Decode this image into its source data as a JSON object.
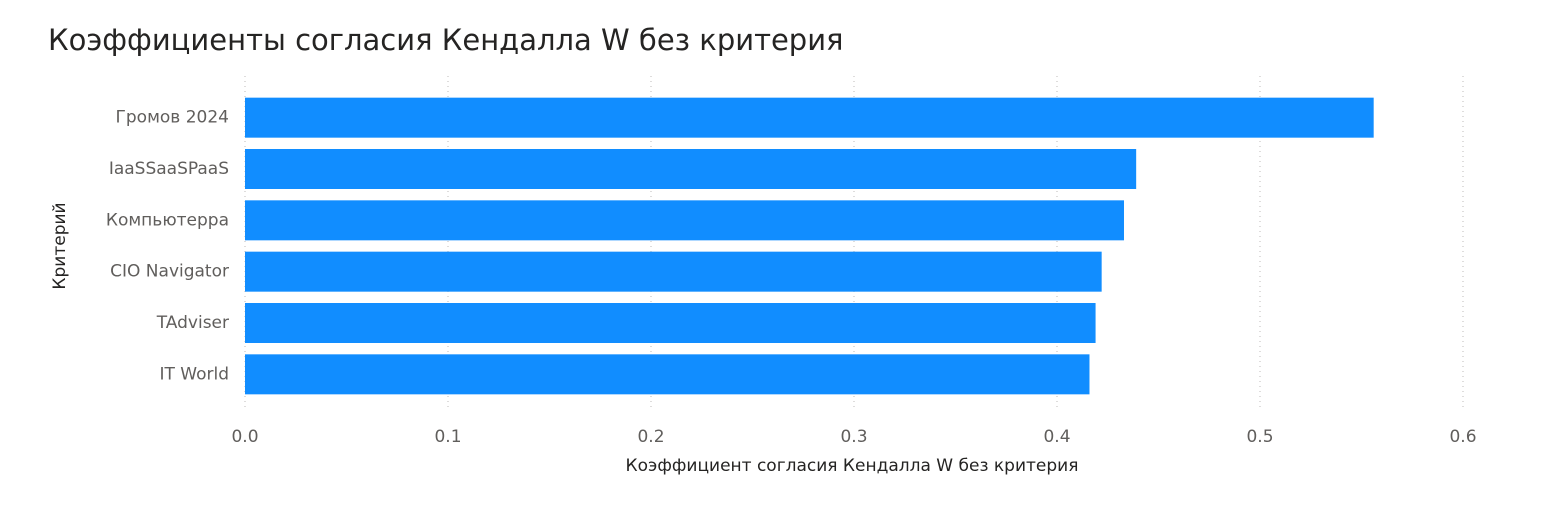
{
  "chart_data": {
    "type": "hbar",
    "title": "Коэффициенты согласия Кендалла W без критерия",
    "x_label": "Коэффициент согласия Кендалла W без критерия",
    "y_label": "Критерий",
    "categories": [
      "Громов 2024",
      "IaaSSaaSPaaS",
      "Компьютерра",
      "CIO Navigator",
      "TAdviser",
      "IT World"
    ],
    "values": [
      0.556,
      0.439,
      0.433,
      0.422,
      0.419,
      0.416
    ],
    "color": "#118DFF",
    "xlim": [
      0,
      0.6
    ],
    "xticks": [
      {
        "value": 0,
        "label": "0.0"
      },
      0.1,
      0.2,
      0.3,
      0.4,
      0.5,
      0.6
    ],
    "grid": true
  }
}
